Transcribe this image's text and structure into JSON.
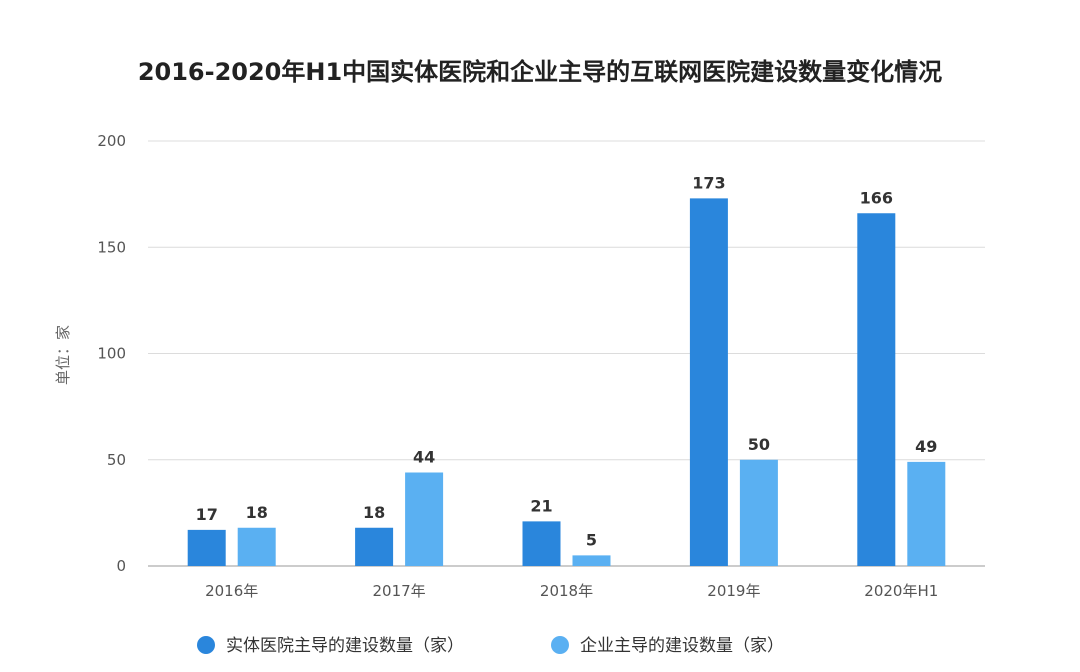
{
  "chart_data": {
    "type": "bar",
    "title": "2016-2020年H1中国实体医院和企业主导的互联网医院建设数量变化情况",
    "ylabel": "单位：家",
    "xlabel": "",
    "categories": [
      "2016年",
      "2017年",
      "2018年",
      "2019年",
      "2020年H1"
    ],
    "series": [
      {
        "name": "实体医院主导的建设数量（家）",
        "values": [
          17,
          18,
          21,
          173,
          166
        ],
        "color": "#2a86dc"
      },
      {
        "name": "企业主导的建设数量（家）",
        "values": [
          18,
          44,
          5,
          50,
          49
        ],
        "color": "#5ab0f2"
      }
    ],
    "ylim": [
      0,
      200
    ],
    "yticks": [
      0,
      50,
      100,
      150,
      200
    ],
    "grid": true,
    "legend_position": "bottom"
  }
}
